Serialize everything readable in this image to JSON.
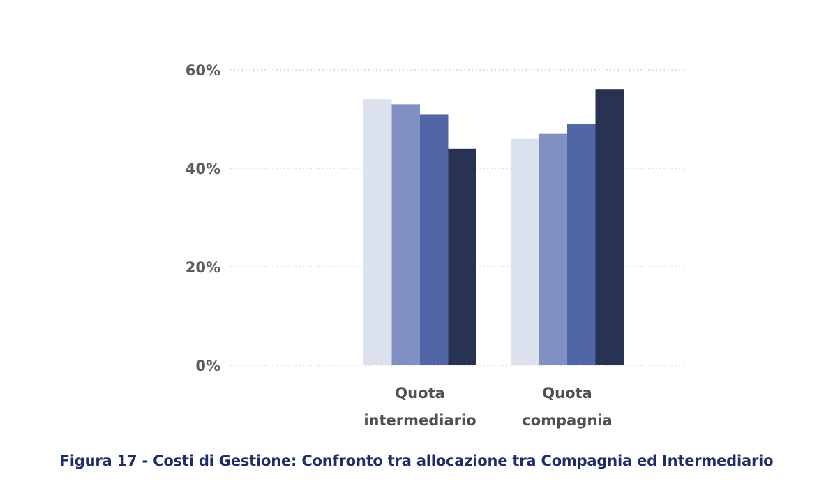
{
  "chart_data": {
    "type": "bar",
    "categories": [
      [
        "Quota",
        "intermediario"
      ],
      [
        "Quota",
        "compagnia"
      ]
    ],
    "series": [
      {
        "values": [
          54,
          46
        ],
        "color": "#dce1ee"
      },
      {
        "values": [
          53,
          47
        ],
        "color": "#8190c2"
      },
      {
        "values": [
          51,
          49
        ],
        "color": "#5066a7"
      },
      {
        "values": [
          44,
          56
        ],
        "color": "#283252"
      }
    ],
    "yticks": [
      "0%",
      "20%",
      "40%",
      "60%"
    ],
    "ytick_values": [
      0,
      20,
      40,
      60
    ],
    "ylim": [
      0,
      60
    ],
    "grid": "dotted horizontal",
    "legend": "none"
  },
  "caption": "Figura 17 - Costi di Gestione: Confronto tra allocazione tra Compagnia ed Intermediario"
}
